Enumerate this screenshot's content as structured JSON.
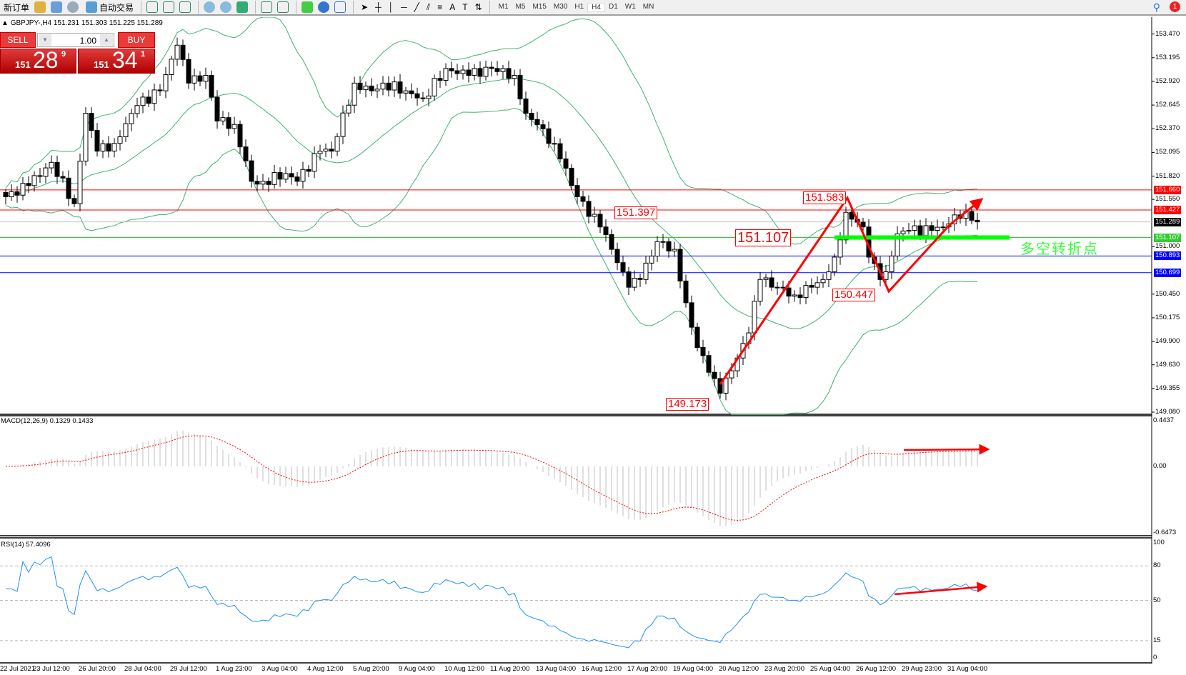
{
  "toolbar": {
    "new_order": "新订单",
    "auto_trading": "自动交易",
    "timeframes": [
      "M1",
      "M5",
      "M15",
      "M30",
      "H1",
      "H4",
      "D1",
      "W1",
      "MN"
    ],
    "active_timeframe": "H4",
    "notifications": "1"
  },
  "chart": {
    "header": "GBPJPY-,H4  151.231 151.303 151.225 151.289",
    "symbol": "GBPJPY-",
    "timeframe": "H4"
  },
  "trade_panel": {
    "sell_label": "SELL",
    "buy_label": "BUY",
    "lots": "1.00",
    "sell_price": {
      "big": "151",
      "mid": "28",
      "small": "9"
    },
    "buy_price": {
      "big": "151",
      "mid": "34",
      "small": "1"
    }
  },
  "price_axis": {
    "min": 149.08,
    "max": 153.47,
    "ticks": [
      "153.470",
      "153.195",
      "152.920",
      "152.645",
      "152.370",
      "152.095",
      "151.820",
      "151.550",
      "151.000",
      "150.450",
      "150.175",
      "149.900",
      "149.630",
      "149.355",
      "149.080"
    ]
  },
  "levels": [
    {
      "price": "151.660",
      "color": "#ff0000"
    },
    {
      "price": "151.427",
      "color": "#ff0000"
    },
    {
      "price": "151.289",
      "color": "#c0c0c0",
      "label_bg": "#000000"
    },
    {
      "price": "151.107",
      "color": "#32cd32"
    },
    {
      "price": "150.893",
      "color": "#0000ff"
    },
    {
      "price": "150.699",
      "color": "#0000ff"
    }
  ],
  "annotations": {
    "high1": "151.397",
    "peak": "151.583",
    "pivot": "151.107",
    "pullback": "150.447",
    "low": "149.173",
    "turn_text": "多空转折点"
  },
  "macd": {
    "label": "MACD(12,26,9) 0.1329 0.1433",
    "ticks": [
      "0.4437",
      "0.00",
      "-0.6473"
    ],
    "max": 0.4437,
    "min": -0.6473
  },
  "rsi": {
    "label": "RSI(14) 57.4096",
    "ticks": [
      "100",
      "80",
      "50",
      "15",
      "0"
    ],
    "levels": [
      80,
      50,
      15
    ]
  },
  "time_axis": [
    "22 Jul 2021",
    "23 Jul 12:00",
    "26 Jul 20:00",
    "28 Jul 04:00",
    "29 Jul 12:00",
    "1 Aug 23:00",
    "3 Aug 04:00",
    "4 Aug 12:00",
    "5 Aug 20:00",
    "9 Aug 04:00",
    "10 Aug 12:00",
    "11 Aug 20:00",
    "13 Aug 04:00",
    "16 Aug 12:00",
    "17 Aug 20:00",
    "19 Aug 04:00",
    "20 Aug 12:00",
    "23 Aug 20:00",
    "25 Aug 04:00",
    "26 Aug 12:00",
    "29 Aug 23:00",
    "31 Aug 04:00"
  ],
  "close_path": [
    [
      0,
      151.58
    ],
    [
      4,
      151.71
    ],
    [
      8,
      151.98
    ],
    [
      12,
      151.5
    ],
    [
      14,
      152.55
    ],
    [
      16,
      152.11
    ],
    [
      19,
      152.2
    ],
    [
      23,
      152.64
    ],
    [
      27,
      152.81
    ],
    [
      30,
      153.34
    ],
    [
      32,
      152.9
    ],
    [
      35,
      152.99
    ],
    [
      37,
      152.46
    ],
    [
      40,
      152.42
    ],
    [
      43,
      151.76
    ],
    [
      45,
      151.76
    ],
    [
      49,
      151.85
    ],
    [
      51,
      151.76
    ],
    [
      55,
      152.11
    ],
    [
      57,
      152.11
    ],
    [
      61,
      152.9
    ],
    [
      64,
      152.81
    ],
    [
      66,
      152.9
    ],
    [
      70,
      152.81
    ],
    [
      73,
      152.72
    ],
    [
      77,
      153.07
    ],
    [
      81,
      152.99
    ],
    [
      85,
      153.07
    ],
    [
      89,
      152.99
    ],
    [
      91,
      152.55
    ],
    [
      94,
      152.37
    ],
    [
      97,
      152.02
    ],
    [
      100,
      151.58
    ],
    [
      104,
      151.23
    ],
    [
      106,
      150.97
    ],
    [
      109,
      150.53
    ],
    [
      111,
      150.62
    ],
    [
      114,
      151.06
    ],
    [
      117,
      150.97
    ],
    [
      119,
      150.35
    ],
    [
      121,
      149.83
    ],
    [
      124,
      149.47
    ],
    [
      125,
      149.3
    ],
    [
      127,
      149.56
    ],
    [
      130,
      150.0
    ],
    [
      132,
      150.62
    ],
    [
      135,
      150.53
    ],
    [
      138,
      150.44
    ],
    [
      141,
      150.53
    ],
    [
      143,
      150.62
    ],
    [
      145,
      150.88
    ],
    [
      147,
      151.4
    ],
    [
      148,
      151.32
    ],
    [
      150,
      151.23
    ],
    [
      151,
      150.88
    ],
    [
      153,
      150.62
    ],
    [
      154,
      150.71
    ],
    [
      156,
      151.15
    ],
    [
      158,
      151.19
    ],
    [
      162,
      151.19
    ],
    [
      164,
      151.23
    ],
    [
      166,
      151.37
    ],
    [
      168,
      151.41
    ],
    [
      170,
      151.289
    ]
  ],
  "colors": {
    "bands": "#3cb371",
    "arrow": "#ff0000",
    "signal": "#ff0000",
    "histogram": "#c0c0c0",
    "rsi": "#1e90ff",
    "turn_bar": "#00ff00"
  }
}
